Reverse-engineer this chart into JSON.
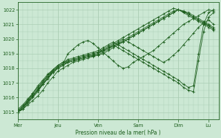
{
  "xlabel": "Pression niveau de la mer( hPa )",
  "ylim": [
    1014.5,
    1022.5
  ],
  "yticks": [
    1015,
    1016,
    1017,
    1018,
    1019,
    1020,
    1021,
    1022
  ],
  "day_labels": [
    "Mer",
    "Jeu",
    "Ven",
    "Sam",
    "Dim",
    "Lu"
  ],
  "day_positions": [
    0,
    24,
    48,
    72,
    96,
    114
  ],
  "total_hours": 120,
  "background_color": "#cce8d4",
  "grid_color": "#aacdb4",
  "line_color": "#1a5c1a",
  "series": [
    {
      "x": [
        0,
        3,
        6,
        9,
        12,
        15,
        18,
        21,
        24,
        27,
        30,
        33,
        36,
        39,
        42,
        45,
        48,
        51,
        54,
        57,
        60,
        63,
        66,
        69,
        72,
        75,
        78,
        81,
        84,
        87,
        90,
        93,
        96,
        99,
        102,
        105,
        108,
        111,
        114,
        117
      ],
      "y": [
        1015.0,
        1015.2,
        1015.5,
        1015.8,
        1016.1,
        1016.5,
        1017.0,
        1017.4,
        1017.8,
        1018.0,
        1018.2,
        1018.4,
        1018.5,
        1018.6,
        1018.7,
        1018.8,
        1018.9,
        1019.0,
        1019.2,
        1019.4,
        1019.6,
        1019.8,
        1020.0,
        1020.2,
        1020.4,
        1020.6,
        1020.8,
        1021.0,
        1021.2,
        1021.4,
        1021.6,
        1021.8,
        1022.0,
        1021.9,
        1021.8,
        1021.6,
        1021.4,
        1021.2,
        1021.0,
        1020.8
      ]
    },
    {
      "x": [
        0,
        3,
        6,
        9,
        12,
        15,
        18,
        21,
        24,
        27,
        30,
        33,
        36,
        39,
        42,
        45,
        48,
        51,
        54,
        57,
        60,
        63,
        66,
        69,
        72,
        75,
        78,
        81,
        84,
        87,
        90,
        93,
        96,
        99,
        102,
        105,
        108,
        111,
        114,
        117
      ],
      "y": [
        1015.0,
        1015.3,
        1015.7,
        1016.1,
        1016.5,
        1017.0,
        1017.4,
        1017.8,
        1018.1,
        1018.3,
        1018.5,
        1018.6,
        1018.7,
        1018.8,
        1018.9,
        1019.0,
        1019.1,
        1019.3,
        1019.5,
        1019.7,
        1019.9,
        1020.1,
        1020.3,
        1020.5,
        1020.7,
        1020.9,
        1021.1,
        1021.3,
        1021.5,
        1021.7,
        1021.9,
        1022.1,
        1022.0,
        1021.8,
        1021.6,
        1021.4,
        1021.2,
        1021.0,
        1020.8,
        1020.6
      ]
    },
    {
      "x": [
        0,
        3,
        6,
        9,
        12,
        15,
        18,
        21,
        24,
        27,
        30,
        33,
        36,
        39,
        42,
        45,
        48,
        51,
        54,
        57,
        60,
        63,
        66,
        69,
        72,
        75,
        78,
        81,
        84,
        87,
        90,
        93,
        96,
        99,
        102,
        105,
        108,
        111,
        114,
        117
      ],
      "y": [
        1015.1,
        1015.4,
        1015.8,
        1016.2,
        1016.6,
        1017.1,
        1017.5,
        1017.8,
        1018.1,
        1018.3,
        1018.4,
        1018.5,
        1018.6,
        1018.7,
        1018.8,
        1018.9,
        1019.0,
        1019.2,
        1019.4,
        1019.5,
        1019.7,
        1019.8,
        1020.0,
        1020.2,
        1020.4,
        1020.6,
        1020.8,
        1021.0,
        1021.2,
        1021.4,
        1021.6,
        1021.8,
        1022.0,
        1021.9,
        1021.7,
        1021.5,
        1021.3,
        1021.1,
        1020.9,
        1020.7
      ]
    },
    {
      "x": [
        0,
        3,
        6,
        9,
        12,
        15,
        18,
        21,
        24,
        27,
        30,
        33,
        36,
        39,
        42,
        45,
        48,
        51,
        54,
        57,
        60,
        63,
        66,
        69,
        72,
        75,
        78,
        81,
        84,
        87,
        90,
        93,
        96,
        99,
        102,
        105,
        108,
        111,
        114,
        117
      ],
      "y": [
        1015.0,
        1015.2,
        1015.6,
        1016.0,
        1016.4,
        1016.9,
        1017.3,
        1017.7,
        1018.0,
        1018.2,
        1018.4,
        1018.5,
        1018.6,
        1018.7,
        1018.8,
        1018.85,
        1018.9,
        1019.1,
        1019.3,
        1019.5,
        1019.7,
        1019.9,
        1020.1,
        1020.3,
        1020.5,
        1020.7,
        1020.9,
        1021.1,
        1021.3,
        1021.5,
        1021.7,
        1021.9,
        1022.0,
        1021.85,
        1021.7,
        1021.5,
        1021.3,
        1021.1,
        1020.9,
        1020.7
      ]
    },
    {
      "x": [
        0,
        3,
        6,
        9,
        12,
        15,
        18,
        21,
        24,
        27,
        30,
        33,
        36,
        39,
        42,
        45,
        48,
        51,
        54,
        57,
        60,
        63,
        66,
        69,
        72,
        75,
        78,
        81,
        84,
        87,
        90,
        93,
        96,
        99,
        102,
        105,
        108,
        111,
        114,
        117
      ],
      "y": [
        1015.0,
        1015.3,
        1015.7,
        1016.1,
        1016.5,
        1016.9,
        1017.3,
        1017.8,
        1018.1,
        1018.3,
        1019.0,
        1019.3,
        1019.6,
        1019.8,
        1019.9,
        1019.7,
        1019.4,
        1019.1,
        1018.8,
        1018.5,
        1018.2,
        1018.0,
        1018.1,
        1018.4,
        1018.6,
        1018.8,
        1019.0,
        1019.2,
        1019.5,
        1019.8,
        1020.1,
        1020.4,
        1020.7,
        1021.0,
        1021.2,
        1021.4,
        1021.6,
        1021.8,
        1022.0,
        1021.9
      ]
    },
    {
      "x": [
        0,
        3,
        6,
        9,
        12,
        15,
        18,
        21,
        24,
        27,
        30,
        33,
        36,
        39,
        42,
        45,
        48,
        51,
        54,
        57,
        60,
        63,
        66,
        69,
        72,
        75,
        78,
        81,
        84,
        87,
        90,
        93,
        96,
        99,
        102,
        105,
        108,
        111,
        114,
        117
      ],
      "y": [
        1015.1,
        1015.4,
        1015.8,
        1016.3,
        1016.8,
        1017.2,
        1017.6,
        1017.9,
        1018.2,
        1018.4,
        1018.5,
        1018.6,
        1018.7,
        1018.8,
        1018.9,
        1019.0,
        1019.1,
        1019.2,
        1019.4,
        1019.6,
        1019.8,
        1020.0,
        1019.8,
        1019.6,
        1019.4,
        1019.2,
        1019.0,
        1018.8,
        1018.6,
        1018.4,
        1018.6,
        1018.9,
        1019.2,
        1019.6,
        1020.0,
        1020.4,
        1020.8,
        1021.1,
        1021.3,
        1021.0
      ]
    },
    {
      "x": [
        0,
        3,
        6,
        9,
        12,
        15,
        18,
        21,
        24,
        27,
        30,
        33,
        36,
        39,
        42,
        45,
        48,
        51,
        54,
        57,
        60,
        63,
        66,
        69,
        72,
        75,
        78,
        81,
        84,
        87,
        90,
        93,
        96,
        99,
        102,
        105,
        108,
        111,
        114,
        117
      ],
      "y": [
        1015.2,
        1015.5,
        1015.9,
        1016.3,
        1016.7,
        1017.1,
        1017.5,
        1017.9,
        1018.2,
        1018.4,
        1018.6,
        1018.7,
        1018.8,
        1018.9,
        1019.0,
        1019.1,
        1019.2,
        1019.4,
        1019.6,
        1019.8,
        1019.6,
        1019.4,
        1019.2,
        1019.0,
        1018.8,
        1018.6,
        1018.4,
        1018.2,
        1018.0,
        1017.8,
        1017.6,
        1017.4,
        1017.2,
        1016.9,
        1016.7,
        1016.8,
        1019.0,
        1021.0,
        1021.8,
        1022.0
      ]
    },
    {
      "x": [
        0,
        3,
        6,
        9,
        12,
        15,
        18,
        21,
        24,
        27,
        30,
        33,
        36,
        39,
        42,
        45,
        48,
        51,
        54,
        57,
        60,
        63,
        66,
        69,
        72,
        75,
        78,
        81,
        84,
        87,
        90,
        93,
        96,
        99,
        102,
        105,
        108,
        111,
        114,
        117
      ],
      "y": [
        1015.0,
        1015.3,
        1015.7,
        1016.1,
        1016.5,
        1016.9,
        1017.3,
        1017.7,
        1018.0,
        1018.2,
        1018.4,
        1018.5,
        1018.6,
        1018.7,
        1018.8,
        1018.9,
        1019.0,
        1019.2,
        1019.4,
        1019.6,
        1019.4,
        1019.2,
        1019.0,
        1018.8,
        1018.6,
        1018.4,
        1018.2,
        1018.0,
        1017.8,
        1017.6,
        1017.4,
        1017.2,
        1017.0,
        1016.7,
        1016.5,
        1016.4,
        1018.5,
        1020.5,
        1021.5,
        1021.8
      ]
    }
  ]
}
